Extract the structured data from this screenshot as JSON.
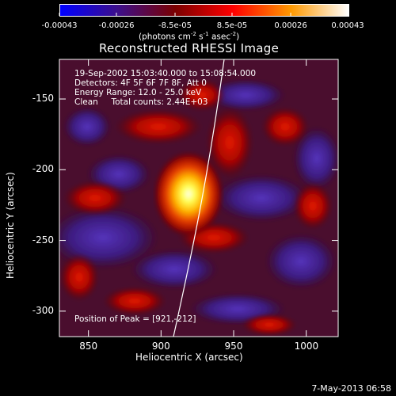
{
  "colorbar": {
    "ticks": [
      "-0.00043",
      "-0.00026",
      "-8.5e-05",
      "8.5e-05",
      "0.00026",
      "0.00043"
    ],
    "tick_values": [
      -0.00043,
      -0.00026,
      -8.5e-05,
      8.5e-05,
      0.00026,
      0.00043
    ],
    "units_main": "(photons cm",
    "units_sup1": "-2",
    "units_mid": " s",
    "units_sup2": "-1",
    "units_tail": " asec",
    "units_sup3": "-2",
    "units_close": ")",
    "colors": [
      "#0000ff",
      "#3d0f8a",
      "#7a0000",
      "#ff0000",
      "#ff9900",
      "#ffffff"
    ]
  },
  "chart_data": {
    "type": "heatmap",
    "title": "Reconstructed RHESSI Image",
    "xlabel": "Heliocentric X (arcsec)",
    "ylabel": "Heliocentric Y (arcsec)",
    "xlim": [
      830,
      1022
    ],
    "ylim": [
      -318,
      -122
    ],
    "x_ticks": [
      "850",
      "900",
      "950",
      "1000"
    ],
    "x_tick_values": [
      850,
      900,
      950,
      1000
    ],
    "y_ticks": [
      "-150",
      "-200",
      "-250",
      "-300"
    ],
    "y_tick_values": [
      -150,
      -200,
      -250,
      -300
    ],
    "peak": [
      921,
      -212
    ],
    "info_lines": [
      "19-Sep-2002 15:03:40.000 to 15:08:54.000",
      "Detectors: 4F 5F 6F 7F 8F, Att 0",
      "Energy Range: 12.0 - 25.0 keV",
      "Clean     Total counts: 2.44E+03"
    ],
    "peak_label": "Position of Peak = [921,-212]"
  },
  "footer": {
    "date": "7-May-2013 06:58"
  }
}
